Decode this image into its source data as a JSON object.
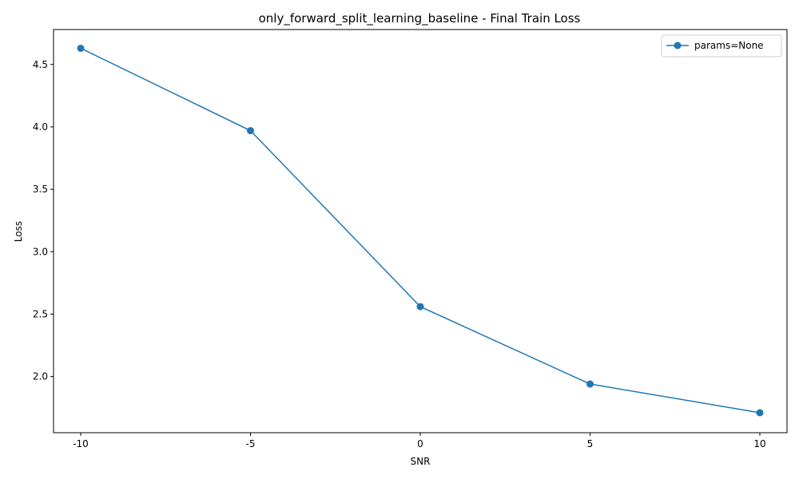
{
  "chart_data": {
    "type": "line",
    "title": "only_forward_split_learning_baseline - Final Train Loss",
    "xlabel": "SNR",
    "ylabel": "Loss",
    "x_tick_labels": [
      "-10",
      "-5",
      "0",
      "5",
      "10"
    ],
    "y_ticks": [
      2.0,
      2.5,
      3.0,
      3.5,
      4.0,
      4.5
    ],
    "y_tick_labels": [
      "2.0",
      "2.5",
      "3.0",
      "3.5",
      "4.0",
      "4.5"
    ],
    "ylim": [
      1.55,
      4.78
    ],
    "xlim": [
      -10.8,
      10.8
    ],
    "grid": false,
    "legend_position": "top-right",
    "series": [
      {
        "name": "params=None",
        "color": "#1f77b4",
        "marker": "circle",
        "x": [
          -10,
          -5,
          0,
          5,
          10
        ],
        "values": [
          4.63,
          3.97,
          2.56,
          1.94,
          1.71
        ]
      }
    ]
  }
}
